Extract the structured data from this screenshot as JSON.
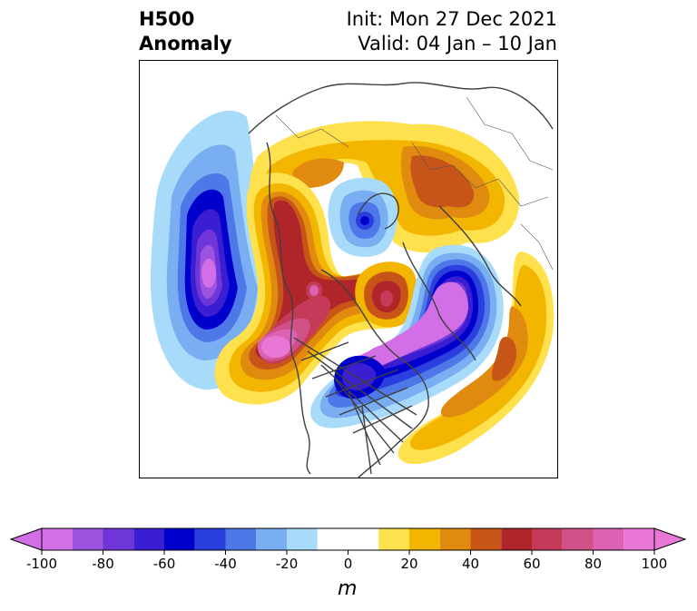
{
  "title": {
    "left_line1": "H500",
    "left_line2": "Anomaly",
    "right_line1": "Init: Mon 27 Dec 2021",
    "right_line2": "Valid: 04 Jan – 10 Jan"
  },
  "colorbar": {
    "unit": "m",
    "tick_labels": [
      "-100",
      "-80",
      "-60",
      "-40",
      "-20",
      "0",
      "20",
      "40",
      "60",
      "80",
      "100"
    ],
    "tick_values": [
      -100,
      -80,
      -60,
      -40,
      -20,
      0,
      20,
      40,
      60,
      80,
      100
    ],
    "levels": [
      -100,
      -90,
      -80,
      -70,
      -60,
      -50,
      -40,
      -30,
      -20,
      -10,
      10,
      20,
      30,
      40,
      50,
      60,
      70,
      80,
      90,
      100
    ],
    "colors": [
      "#d36fe6",
      "#9c54e0",
      "#6e36d8",
      "#3c1ed2",
      "#0000cd",
      "#2a3fde",
      "#4e78e8",
      "#79aef2",
      "#a8dbfa",
      "#ffffff",
      "#ffe14d",
      "#f2b500",
      "#e08a10",
      "#c85518",
      "#b0252a",
      "#c43a58",
      "#d05088",
      "#dc62b4",
      "#e877d6"
    ],
    "extend_low_color": "#d36fe6",
    "extend_high_color": "#e877d6"
  },
  "map": {
    "projection": "north-polar-stereographic",
    "region": "Northern Hemisphere",
    "anomalies": [
      {
        "name": "pacific-trough",
        "value": -100
      },
      {
        "name": "west-coast-ridge",
        "value": 100
      },
      {
        "name": "eastern-north-america-trough",
        "value": -100
      },
      {
        "name": "arctic-low",
        "value": -60
      },
      {
        "name": "eurasia-ridge",
        "value": 50
      },
      {
        "name": "central-atlantic-ridge",
        "value": 50
      },
      {
        "name": "greenland-ridge",
        "value": 70
      }
    ]
  }
}
